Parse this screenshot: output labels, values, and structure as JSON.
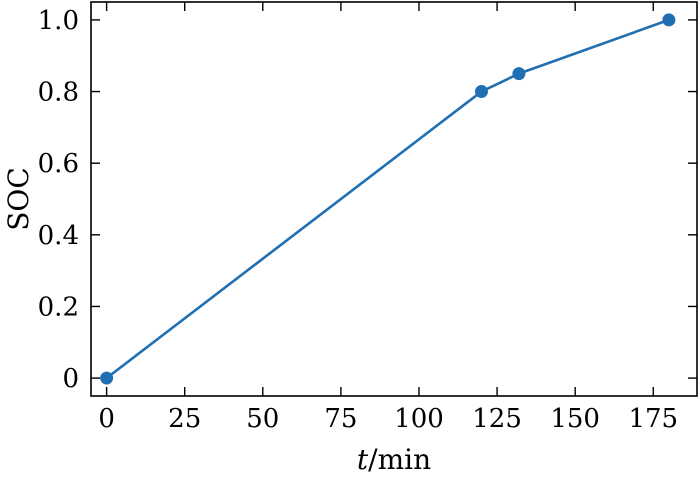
{
  "chart_data": {
    "type": "line",
    "title": "",
    "xlabel": {
      "italic": "t",
      "rest": "/min"
    },
    "ylabel": "SOC",
    "xlim": [
      -5,
      189
    ],
    "ylim": [
      -0.05,
      1.05
    ],
    "x_ticks": [
      0,
      25,
      50,
      75,
      100,
      125,
      150,
      175
    ],
    "x_tick_labels": [
      "0",
      "25",
      "50",
      "75",
      "100",
      "125",
      "150",
      "175"
    ],
    "y_ticks": [
      0,
      0.2,
      0.4,
      0.6,
      0.8,
      1.0
    ],
    "y_tick_labels": [
      "0",
      "0.2",
      "0.4",
      "0.6",
      "0.8",
      "1.0"
    ],
    "grid": false,
    "series": [
      {
        "color": "#1f6fb2",
        "markers": true,
        "x": [
          0,
          120,
          132,
          180
        ],
        "y": [
          0,
          0.8,
          0.85,
          1.0
        ]
      }
    ]
  }
}
